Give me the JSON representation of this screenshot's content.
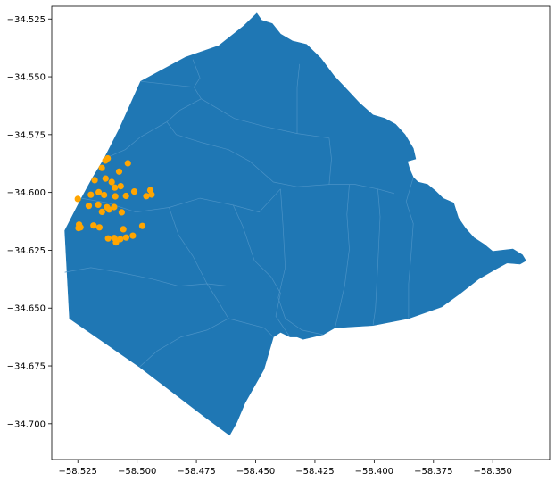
{
  "chart_data": {
    "type": "scatter",
    "title": "",
    "xlabel": "",
    "ylabel": "",
    "xlim": [
      -58.536,
      -58.326
    ],
    "ylim": [
      -34.7155,
      -34.5195
    ],
    "grid": false,
    "xticks": [
      -58.525,
      -58.5,
      -58.475,
      -58.45,
      -58.425,
      -58.4,
      -58.375,
      -58.35
    ],
    "xtick_labels": [
      "−58.525",
      "−58.500",
      "−58.475",
      "−58.450",
      "−58.425",
      "−58.400",
      "−58.375",
      "−58.350"
    ],
    "yticks": [
      -34.525,
      -34.55,
      -34.575,
      -34.6,
      -34.625,
      -34.65,
      -34.675,
      -34.7
    ],
    "ytick_labels": [
      "−34.525",
      "−34.550",
      "−34.575",
      "−34.600",
      "−34.625",
      "−34.650",
      "−34.675",
      "−34.700"
    ],
    "background_layer": {
      "kind": "polygon-map",
      "description_free": true,
      "fill_color": "#1f77b4",
      "edge_color": "#4a92c6",
      "outline": [
        [
          -58.461,
          -34.705
        ],
        [
          -58.4715,
          -34.697
        ],
        [
          -58.499,
          -34.6755
        ],
        [
          -58.5285,
          -34.6545
        ],
        [
          -58.5305,
          -34.6165
        ],
        [
          -58.5235,
          -34.6025
        ],
        [
          -58.519,
          -34.594
        ],
        [
          -58.514,
          -34.5855
        ],
        [
          -58.5075,
          -34.5725
        ],
        [
          -58.4985,
          -34.552
        ],
        [
          -58.4795,
          -34.5415
        ],
        [
          -58.4655,
          -34.5365
        ],
        [
          -58.455,
          -34.528
        ],
        [
          -58.4515,
          -34.5245
        ],
        [
          -58.4495,
          -34.5225
        ],
        [
          -58.4475,
          -34.5255
        ],
        [
          -58.443,
          -34.527
        ],
        [
          -58.4395,
          -34.5315
        ],
        [
          -58.4345,
          -34.5345
        ],
        [
          -58.4285,
          -34.536
        ],
        [
          -58.4225,
          -34.542
        ],
        [
          -58.417,
          -34.5495
        ],
        [
          -58.4115,
          -34.5555
        ],
        [
          -58.406,
          -34.5615
        ],
        [
          -58.4005,
          -34.5665
        ],
        [
          -58.3955,
          -34.568
        ],
        [
          -58.391,
          -34.5705
        ],
        [
          -58.387,
          -34.575
        ],
        [
          -58.3835,
          -34.581
        ],
        [
          -58.3825,
          -34.5855
        ],
        [
          -58.386,
          -34.5865
        ],
        [
          -58.385,
          -34.59
        ],
        [
          -58.3835,
          -34.5935
        ],
        [
          -58.3815,
          -34.5955
        ],
        [
          -58.3775,
          -34.5965
        ],
        [
          -58.374,
          -34.5995
        ],
        [
          -58.371,
          -34.6025
        ],
        [
          -58.3665,
          -34.6045
        ],
        [
          -58.3645,
          -34.611
        ],
        [
          -58.3615,
          -34.6155
        ],
        [
          -58.358,
          -34.6195
        ],
        [
          -58.3535,
          -34.6225
        ],
        [
          -58.35,
          -34.6255
        ],
        [
          -58.3415,
          -34.6245
        ],
        [
          -58.3375,
          -34.627
        ],
        [
          -58.336,
          -34.6295
        ],
        [
          -58.3385,
          -34.631
        ],
        [
          -58.344,
          -34.6305
        ],
        [
          -58.3485,
          -34.633
        ],
        [
          -58.356,
          -34.6375
        ],
        [
          -58.3635,
          -34.6435
        ],
        [
          -58.3715,
          -34.6495
        ],
        [
          -58.3855,
          -34.6545
        ],
        [
          -58.4005,
          -34.6575
        ],
        [
          -58.4165,
          -34.6585
        ],
        [
          -58.4215,
          -34.6615
        ],
        [
          -58.43,
          -34.6635
        ],
        [
          -58.4325,
          -34.6625
        ],
        [
          -58.4355,
          -34.6625
        ],
        [
          -58.4395,
          -34.6605
        ],
        [
          -58.4425,
          -34.6625
        ],
        [
          -58.4465,
          -34.6765
        ],
        [
          -58.4545,
          -34.691
        ],
        [
          -58.458,
          -34.6995
        ],
        [
          -58.461,
          -34.705
        ]
      ],
      "inner_boundaries": [
        [
          [
            -58.4985,
            -34.552
          ],
          [
            -58.4895,
            -34.553
          ],
          [
            -58.476,
            -34.5545
          ],
          [
            -58.473,
            -34.5595
          ],
          [
            -58.482,
            -34.5645
          ],
          [
            -58.4875,
            -34.5695
          ],
          [
            -58.4985,
            -34.576
          ],
          [
            -58.505,
            -34.5815
          ],
          [
            -58.514,
            -34.5855
          ]
        ],
        [
          [
            -58.473,
            -34.5595
          ],
          [
            -58.459,
            -34.568
          ],
          [
            -58.446,
            -34.5715
          ],
          [
            -58.4325,
            -34.5745
          ],
          [
            -58.419,
            -34.5765
          ]
        ],
        [
          [
            -58.4875,
            -34.5695
          ],
          [
            -58.4835,
            -34.575
          ],
          [
            -58.4725,
            -34.5785
          ],
          [
            -58.4615,
            -34.5815
          ],
          [
            -58.4525,
            -34.5865
          ],
          [
            -58.4425,
            -34.5955
          ],
          [
            -58.4325,
            -34.5975
          ],
          [
            -58.419,
            -34.5965
          ],
          [
            -58.408,
            -34.5965
          ],
          [
            -58.3985,
            -34.5985
          ],
          [
            -58.3915,
            -34.6005
          ]
        ],
        [
          [
            -58.419,
            -34.5765
          ],
          [
            -58.418,
            -34.5855
          ],
          [
            -58.419,
            -34.5965
          ]
        ],
        [
          [
            -58.4315,
            -34.5445
          ],
          [
            -58.4325,
            -34.5545
          ],
          [
            -58.4325,
            -34.5745
          ]
        ],
        [
          [
            -58.4765,
            -34.5425
          ],
          [
            -58.4735,
            -34.5505
          ],
          [
            -58.476,
            -34.5545
          ]
        ],
        [
          [
            -58.3985,
            -34.5985
          ],
          [
            -58.3975,
            -34.6105
          ],
          [
            -58.3985,
            -34.6315
          ],
          [
            -58.3995,
            -34.6505
          ],
          [
            -58.4005,
            -34.6575
          ]
        ],
        [
          [
            -58.3835,
            -34.5935
          ],
          [
            -58.3865,
            -34.604
          ],
          [
            -58.3835,
            -34.6135
          ],
          [
            -58.3845,
            -34.6275
          ],
          [
            -58.3855,
            -34.6395
          ],
          [
            -58.3855,
            -34.6545
          ]
        ],
        [
          [
            -58.4105,
            -34.5965
          ],
          [
            -58.4115,
            -34.6095
          ],
          [
            -58.4105,
            -34.6245
          ],
          [
            -58.4125,
            -34.6405
          ],
          [
            -58.4165,
            -34.6585
          ]
        ],
        [
          [
            -58.4395,
            -34.5985
          ],
          [
            -58.4385,
            -34.614
          ],
          [
            -58.4375,
            -34.6325
          ],
          [
            -58.4405,
            -34.6455
          ],
          [
            -58.4375,
            -34.6545
          ],
          [
            -58.4305,
            -34.6595
          ],
          [
            -58.4215,
            -34.6615
          ]
        ],
        [
          [
            -58.4595,
            -34.6055
          ],
          [
            -58.4555,
            -34.6145
          ],
          [
            -58.4505,
            -34.6295
          ],
          [
            -58.4435,
            -34.6365
          ],
          [
            -58.4395,
            -34.6435
          ],
          [
            -58.4415,
            -34.6535
          ],
          [
            -58.4355,
            -34.6625
          ]
        ],
        [
          [
            -58.5235,
            -34.6025
          ],
          [
            -58.5125,
            -34.6045
          ],
          [
            -58.5005,
            -34.6085
          ],
          [
            -58.4865,
            -34.6065
          ],
          [
            -58.4735,
            -34.6025
          ],
          [
            -58.4595,
            -34.6055
          ],
          [
            -58.4485,
            -34.6085
          ],
          [
            -58.4395,
            -34.5985
          ]
        ],
        [
          [
            -58.5305,
            -34.6345
          ],
          [
            -58.5195,
            -34.6325
          ],
          [
            -58.5075,
            -34.6345
          ],
          [
            -58.4935,
            -34.6375
          ],
          [
            -58.4825,
            -34.6405
          ],
          [
            -58.4705,
            -34.6395
          ],
          [
            -58.4615,
            -34.6405
          ]
        ],
        [
          [
            -58.4865,
            -34.6065
          ],
          [
            -58.4825,
            -34.6185
          ],
          [
            -58.4765,
            -34.6275
          ],
          [
            -58.4705,
            -34.6395
          ],
          [
            -58.4655,
            -34.6475
          ],
          [
            -58.4615,
            -34.6545
          ],
          [
            -58.4465,
            -34.6585
          ],
          [
            -58.4425,
            -34.6625
          ]
        ],
        [
          [
            -58.499,
            -34.6755
          ],
          [
            -58.4915,
            -34.6685
          ],
          [
            -58.4815,
            -34.6625
          ],
          [
            -58.4705,
            -34.6595
          ],
          [
            -58.4615,
            -34.6545
          ]
        ]
      ]
    },
    "series": [
      {
        "name": "points",
        "color": "#ffa500",
        "marker": "circle",
        "points": [
          [
            -58.5134,
            -34.5862
          ],
          [
            -58.5124,
            -34.5853
          ],
          [
            -58.5039,
            -34.5874
          ],
          [
            -58.5149,
            -34.5894
          ],
          [
            -58.5076,
            -34.591
          ],
          [
            -58.5179,
            -34.5947
          ],
          [
            -58.5133,
            -34.594
          ],
          [
            -58.5107,
            -34.5955
          ],
          [
            -58.5069,
            -34.5973
          ],
          [
            -58.5094,
            -34.5979
          ],
          [
            -58.5162,
            -34.5999
          ],
          [
            -58.5012,
            -34.5996
          ],
          [
            -58.4944,
            -34.599
          ],
          [
            -58.5195,
            -34.601
          ],
          [
            -58.5139,
            -34.6011
          ],
          [
            -58.5047,
            -34.6015
          ],
          [
            -58.5092,
            -34.6017
          ],
          [
            -58.4939,
            -34.6009
          ],
          [
            -58.4961,
            -34.6016
          ],
          [
            -58.525,
            -34.6028
          ],
          [
            -58.5204,
            -34.6058
          ],
          [
            -58.5164,
            -34.6053
          ],
          [
            -58.5127,
            -34.6064
          ],
          [
            -58.5118,
            -34.6074
          ],
          [
            -58.5097,
            -34.6063
          ],
          [
            -58.5148,
            -34.6084
          ],
          [
            -58.5065,
            -34.6086
          ],
          [
            -58.5245,
            -34.6139
          ],
          [
            -58.5239,
            -34.6151
          ],
          [
            -58.5247,
            -34.6154
          ],
          [
            -58.5184,
            -34.6143
          ],
          [
            -58.5159,
            -34.6151
          ],
          [
            -58.5058,
            -34.6159
          ],
          [
            -58.4978,
            -34.6145
          ],
          [
            -58.5122,
            -34.6199
          ],
          [
            -58.5096,
            -34.6197
          ],
          [
            -58.5046,
            -34.6195
          ],
          [
            -58.5018,
            -34.6187
          ],
          [
            -58.5089,
            -34.6216
          ],
          [
            -58.5071,
            -34.6202
          ]
        ]
      }
    ]
  }
}
